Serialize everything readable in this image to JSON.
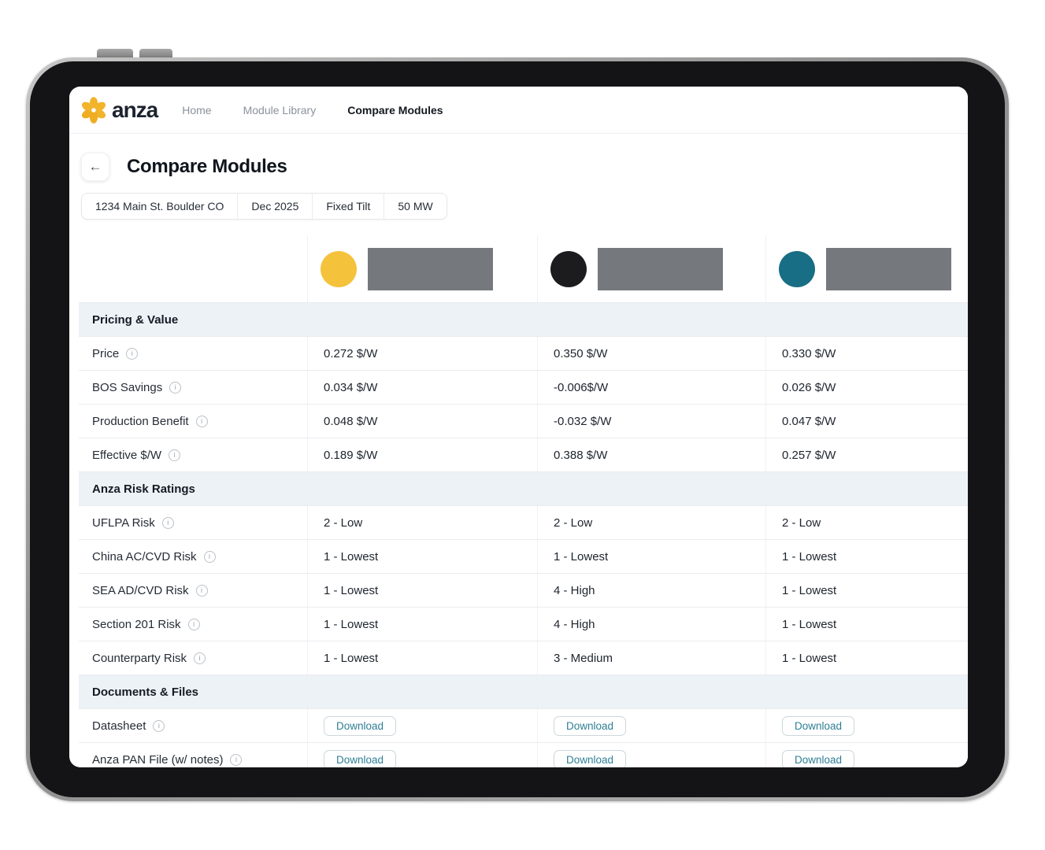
{
  "nav": {
    "brand": "anza",
    "items": [
      {
        "label": "Home",
        "active": false
      },
      {
        "label": "Module Library",
        "active": false
      },
      {
        "label": "Compare Modules",
        "active": true
      }
    ]
  },
  "page": {
    "title": "Compare Modules",
    "back_icon": "←",
    "filters": [
      "1234 Main St. Boulder CO",
      "Dec 2025",
      "Fixed Tilt",
      "50 MW"
    ]
  },
  "modules": [
    {
      "dot_color": "#F4C23B",
      "name_hidden": true
    },
    {
      "dot_color": "#1C1C1E",
      "name_hidden": true
    },
    {
      "dot_color": "#186E84",
      "name_hidden": true
    }
  ],
  "table": {
    "sections": [
      {
        "title": "Pricing & Value",
        "rows": [
          {
            "label": "Price",
            "info": true,
            "values": [
              "0.272 $/W",
              "0.350 $/W",
              "0.330 $/W"
            ]
          },
          {
            "label": "BOS Savings",
            "info": true,
            "values": [
              "0.034 $/W",
              "-0.006$/W",
              "0.026 $/W"
            ]
          },
          {
            "label": "Production Benefit",
            "info": true,
            "values": [
              "0.048 $/W",
              "-0.032 $/W",
              "0.047 $/W"
            ]
          },
          {
            "label": "Effective $/W",
            "info": true,
            "values": [
              "0.189 $/W",
              "0.388 $/W",
              "0.257 $/W"
            ]
          }
        ]
      },
      {
        "title": "Anza Risk Ratings",
        "rows": [
          {
            "label": "UFLPA Risk",
            "info": true,
            "values": [
              "2 - Low",
              "2 - Low",
              "2 - Low"
            ]
          },
          {
            "label": "China AC/CVD Risk",
            "info": true,
            "values": [
              "1 - Lowest",
              "1 - Lowest",
              "1 - Lowest"
            ]
          },
          {
            "label": "SEA AD/CVD Risk",
            "info": true,
            "values": [
              "1 - Lowest",
              "4 - High",
              "1 - Lowest"
            ]
          },
          {
            "label": "Section 201 Risk",
            "info": true,
            "values": [
              "1 - Lowest",
              "4 - High",
              "1 - Lowest"
            ]
          },
          {
            "label": "Counterparty Risk",
            "info": true,
            "values": [
              "1 - Lowest",
              "3 - Medium",
              "1 - Lowest"
            ]
          }
        ]
      },
      {
        "title": "Documents & Files",
        "rows": [
          {
            "label": "Datasheet",
            "info": true,
            "type": "download",
            "values": [
              "Download",
              "Download",
              "Download"
            ]
          },
          {
            "label": "Anza PAN File (w/ notes)",
            "info": true,
            "type": "download",
            "values": [
              "Download",
              "Download",
              "Download"
            ]
          }
        ]
      }
    ]
  },
  "colors": {
    "brand_yellow": "#F2B42B",
    "redacted_bar": "#75797D",
    "section_bg": "#EDF2F6",
    "download_text": "#2E7F95"
  }
}
